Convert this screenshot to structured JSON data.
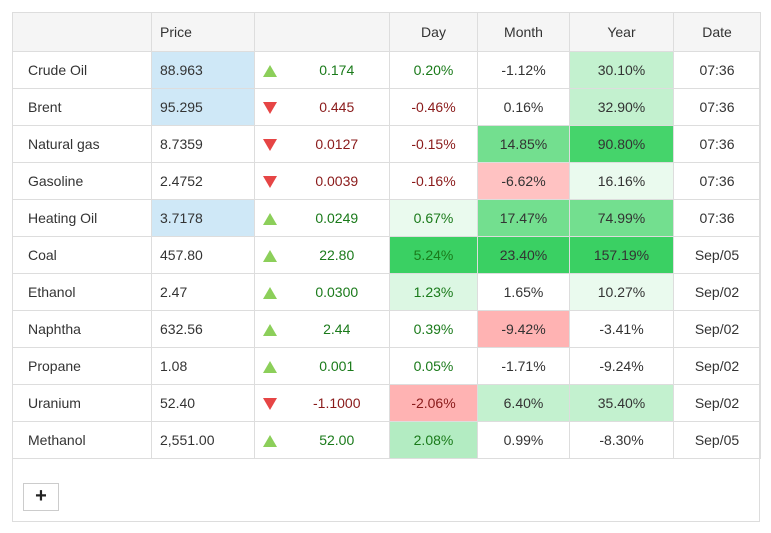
{
  "headers": {
    "name": "",
    "price": "Price",
    "arrow": "",
    "change": "",
    "day": "Day",
    "month": "Month",
    "year": "Year",
    "date": "Date"
  },
  "colors": {
    "blue_highlight": "#cfe8f7",
    "up_arrow": "#8ccf5a",
    "down_arrow": "#e64545"
  },
  "rows": [
    {
      "name": "Crude Oil",
      "price": "88.963",
      "price_highlight": true,
      "dir": "up",
      "change": "0.174",
      "day": "0.20%",
      "month": "-1.12%",
      "year": "30.10%",
      "date": "07:36",
      "day_bg": "",
      "month_bg": "",
      "year_bg": "#c3f1cf"
    },
    {
      "name": "Brent",
      "price": "95.295",
      "price_highlight": true,
      "dir": "down",
      "change": "0.445",
      "day": "-0.46%",
      "month": "0.16%",
      "year": "32.90%",
      "date": "07:36",
      "day_bg": "",
      "month_bg": "",
      "year_bg": "#c3f1cf"
    },
    {
      "name": "Natural gas",
      "price": "8.7359",
      "price_highlight": false,
      "dir": "down",
      "change": "0.0127",
      "day": "-0.15%",
      "month": "14.85%",
      "year": "90.80%",
      "date": "07:36",
      "day_bg": "",
      "month_bg": "#73df8f",
      "year_bg": "#45d46b"
    },
    {
      "name": "Gasoline",
      "price": "2.4752",
      "price_highlight": false,
      "dir": "down",
      "change": "0.0039",
      "day": "-0.16%",
      "month": "-6.62%",
      "year": "16.16%",
      "date": "07:36",
      "day_bg": "",
      "month_bg": "#ffc2c2",
      "year_bg": "#eafaee"
    },
    {
      "name": "Heating Oil",
      "price": "3.7178",
      "price_highlight": true,
      "dir": "up",
      "change": "0.0249",
      "day": "0.67%",
      "month": "17.47%",
      "year": "74.99%",
      "date": "07:36",
      "day_bg": "#eafaee",
      "month_bg": "#73df8f",
      "year_bg": "#73df8f"
    },
    {
      "name": "Coal",
      "price": "457.80",
      "price_highlight": false,
      "dir": "up",
      "change": "22.80",
      "day": "5.24%",
      "month": "23.40%",
      "year": "157.19%",
      "date": "Sep/05",
      "day_bg": "#3ad063",
      "month_bg": "#3ad063",
      "year_bg": "#3ad063"
    },
    {
      "name": "Ethanol",
      "price": "2.47",
      "price_highlight": false,
      "dir": "up",
      "change": "0.0300",
      "day": "1.23%",
      "month": "1.65%",
      "year": "10.27%",
      "date": "Sep/02",
      "day_bg": "#dcf7e3",
      "month_bg": "",
      "year_bg": "#eafaee"
    },
    {
      "name": "Naphtha",
      "price": "632.56",
      "price_highlight": false,
      "dir": "up",
      "change": "2.44",
      "day": "0.39%",
      "month": "-9.42%",
      "year": "-3.41%",
      "date": "Sep/02",
      "day_bg": "",
      "month_bg": "#ffb3b3",
      "year_bg": ""
    },
    {
      "name": "Propane",
      "price": "1.08",
      "price_highlight": false,
      "dir": "up",
      "change": "0.001",
      "day": "0.05%",
      "month": "-1.71%",
      "year": "-9.24%",
      "date": "Sep/02",
      "day_bg": "",
      "month_bg": "",
      "year_bg": ""
    },
    {
      "name": "Uranium",
      "price": "52.40",
      "price_highlight": false,
      "dir": "down",
      "change": "-1.1000",
      "day": "-2.06%",
      "month": "6.40%",
      "year": "35.40%",
      "date": "Sep/02",
      "day_bg": "#ffb3b3",
      "month_bg": "#c3f1cf",
      "year_bg": "#c3f1cf"
    },
    {
      "name": "Methanol",
      "price": "2,551.00",
      "price_highlight": false,
      "dir": "up",
      "change": "52.00",
      "day": "2.08%",
      "month": "0.99%",
      "year": "-8.30%",
      "date": "Sep/05",
      "day_bg": "#b3ecc2",
      "month_bg": "",
      "year_bg": ""
    }
  ],
  "add_button": "+"
}
